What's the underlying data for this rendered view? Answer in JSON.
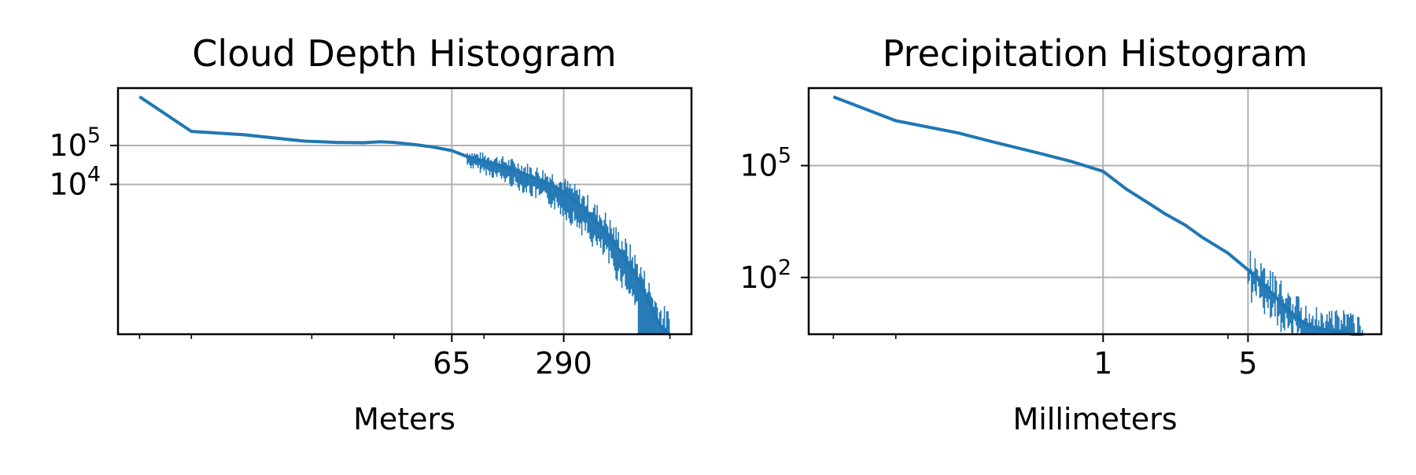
{
  "chart_data": [
    {
      "type": "line",
      "title": "Cloud Depth Histogram",
      "xlabel": "Meters",
      "ylabel": "",
      "xscale": "log",
      "yscale": "log",
      "grid": true,
      "line_color": "#1f77b4",
      "xlim": [
        0.75,
        1600
      ],
      "ylim": [
        1.4,
        3000000
      ],
      "xticks": [
        {
          "value": 65,
          "label": "65"
        },
        {
          "value": 290,
          "label": "290"
        }
      ],
      "xminor_ticks": [
        1,
        2,
        10,
        30,
        100,
        1200
      ],
      "yticks": [
        {
          "value": 100000,
          "base": "10",
          "exp": "5"
        },
        {
          "value": 10000,
          "base": "10",
          "exp": "4"
        }
      ],
      "series": [
        {
          "x": [
            1,
            2,
            4,
            9,
            14,
            20,
            25,
            30,
            40,
            50,
            65,
            80,
            100,
            130,
            160,
            200,
            250,
            290,
            330,
            380,
            430,
            500,
            560,
            640,
            720,
            800,
            870,
            930,
            990,
            1050,
            1100,
            1150,
            1200
          ],
          "y": [
            1800000,
            230000,
            190000,
            130000,
            120000,
            118000,
            125000,
            120000,
            105000,
            92000,
            74000,
            52000,
            40000,
            29000,
            21000,
            14000,
            9500,
            6200,
            4000,
            2400,
            1300,
            700,
            330,
            150,
            70,
            30,
            14,
            7,
            4,
            2.5,
            1.8,
            1.5,
            1.4
          ]
        }
      ],
      "noise_bands": [
        {
          "x_from": 80,
          "x_to": 1200,
          "y_from": 1.4,
          "note": "dense"
        }
      ]
    },
    {
      "type": "line",
      "title": "Precipitation Histogram",
      "xlabel": "Millimeters",
      "ylabel": "",
      "xscale": "log",
      "yscale": "log",
      "grid": true,
      "line_color": "#1f77b4",
      "xlim": [
        0.038,
        22
      ],
      "ylim": [
        3,
        12000000
      ],
      "xticks": [
        {
          "value": 1,
          "label": "1"
        },
        {
          "value": 5,
          "label": "5"
        }
      ],
      "xminor_ticks": [
        0.05,
        0.1,
        4
      ],
      "yticks": [
        {
          "value": 100000,
          "base": "10",
          "exp": "5"
        },
        {
          "value": 100,
          "base": "10",
          "exp": "2"
        }
      ],
      "series": [
        {
          "x": [
            0.05,
            0.1,
            0.2,
            0.3,
            0.5,
            0.7,
            1,
            1.3,
            1.7,
            2,
            2.5,
            3,
            4,
            5,
            6,
            7,
            8,
            9,
            10,
            11,
            12,
            13,
            14,
            16,
            18
          ],
          "y": [
            7000000,
            1600000,
            750000,
            420000,
            210000,
            130000,
            70000,
            23000,
            9000,
            5000,
            2500,
            1200,
            450,
            160,
            60,
            25,
            12,
            7,
            5,
            4,
            4,
            3.5,
            3.5,
            3,
            3
          ]
        }
      ],
      "noise_bands": [
        {
          "x_from": 5,
          "x_to": 18,
          "y_from": 3,
          "note": "sparse"
        }
      ]
    }
  ]
}
